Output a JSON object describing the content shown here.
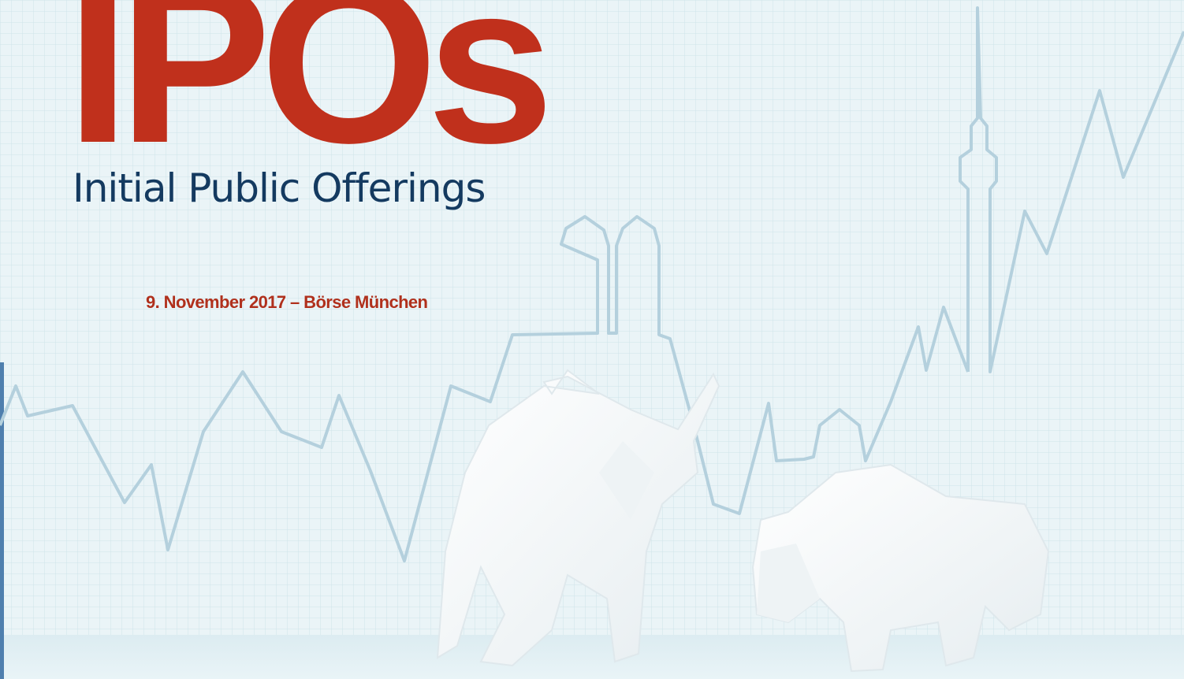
{
  "header": {
    "title": "IPOs",
    "subtitle": "Initial Public Offerings",
    "event": "9. November 2017 – Börse München"
  }
}
